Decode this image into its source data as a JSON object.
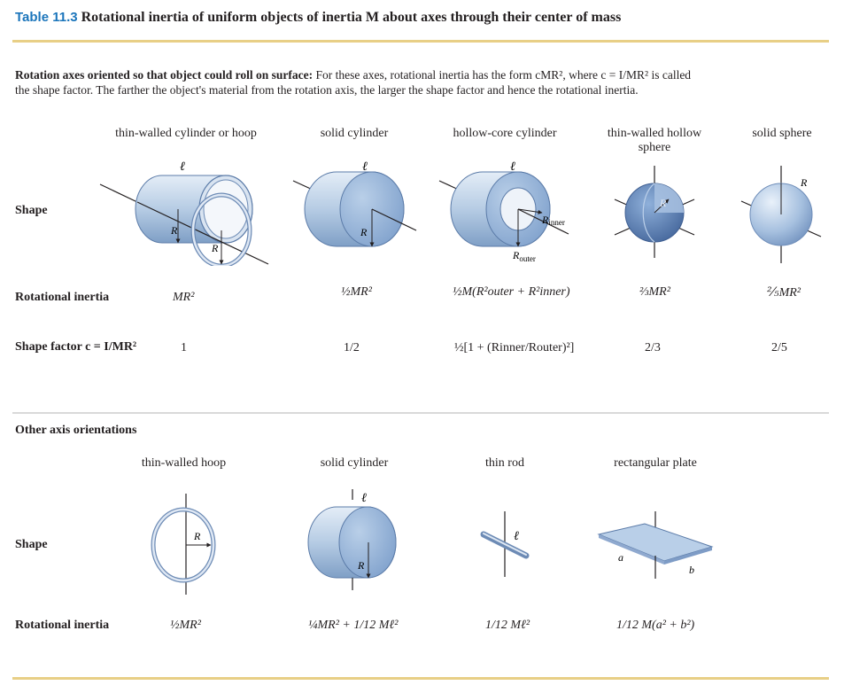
{
  "title": {
    "label": "Table 11.3",
    "text": "Rotational inertia of uniform objects of inertia M about axes through their center of mass"
  },
  "intro": {
    "bold": "Rotation axes oriented so that object could roll on surface:",
    "line1": "For these axes, rotational inertia has the form cMR², where c = I/MR² is called",
    "line2": "the shape factor. The farther the object's material from the rotation axis, the larger the shape factor and hence the rotational inertia."
  },
  "rolling": {
    "columns": [
      "thin-walled cylinder or hoop",
      "solid cylinder",
      "hollow-core cylinder",
      "thin-walled hollow sphere",
      "solid sphere"
    ],
    "row_labels": {
      "shape": "Shape",
      "inertia": "Rotational inertia",
      "shape_factor": "Shape factor c = I/MR²"
    },
    "inertia": [
      "MR²",
      "½MR²",
      "½M(R²outer + R²inner)",
      "⅔MR²",
      "⅖MR²"
    ],
    "shape_factor": [
      "1",
      "1/2",
      "½[1 + (Rinner/Router)²]",
      "2/3",
      "2/5"
    ],
    "labels": {
      "ell": "ℓ",
      "r": "R",
      "r_inner": "Rinner",
      "r_outer": "Router"
    }
  },
  "other": {
    "heading": "Other axis orientations",
    "columns": [
      "thin-walled hoop",
      "solid cylinder",
      "thin rod",
      "rectangular plate"
    ],
    "row_labels": {
      "shape": "Shape",
      "inertia": "Rotational inertia"
    },
    "inertia": [
      "½MR²",
      "¼MR² + 1/12 Mℓ²",
      "1/12 Mℓ²",
      "1/12 M(a² + b²)"
    ],
    "labels": {
      "ell": "ℓ",
      "r": "R",
      "a": "a",
      "b": "b"
    }
  },
  "colors": {
    "title_blue": "#1b75bb",
    "rule_gold": "#e8cf86",
    "object_blue": "#9bb8d8"
  }
}
